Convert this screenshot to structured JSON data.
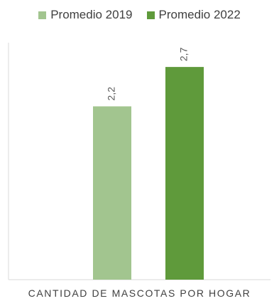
{
  "chart_data": {
    "type": "bar",
    "categories": [
      "CANTIDAD DE MASCOTAS POR HOGAR"
    ],
    "series": [
      {
        "name": "Promedio 2019",
        "values": [
          2.2
        ],
        "label": "2,2",
        "color": "#a2c58f"
      },
      {
        "name": "Promedio 2022",
        "values": [
          2.7
        ],
        "label": "2,7",
        "color": "#5f9a3b"
      }
    ],
    "title": "",
    "xlabel": "CANTIDAD DE MASCOTAS POR HOGAR",
    "ylabel": "",
    "ylim": [
      0,
      3.0
    ],
    "grid": false,
    "legend_position": "top"
  }
}
